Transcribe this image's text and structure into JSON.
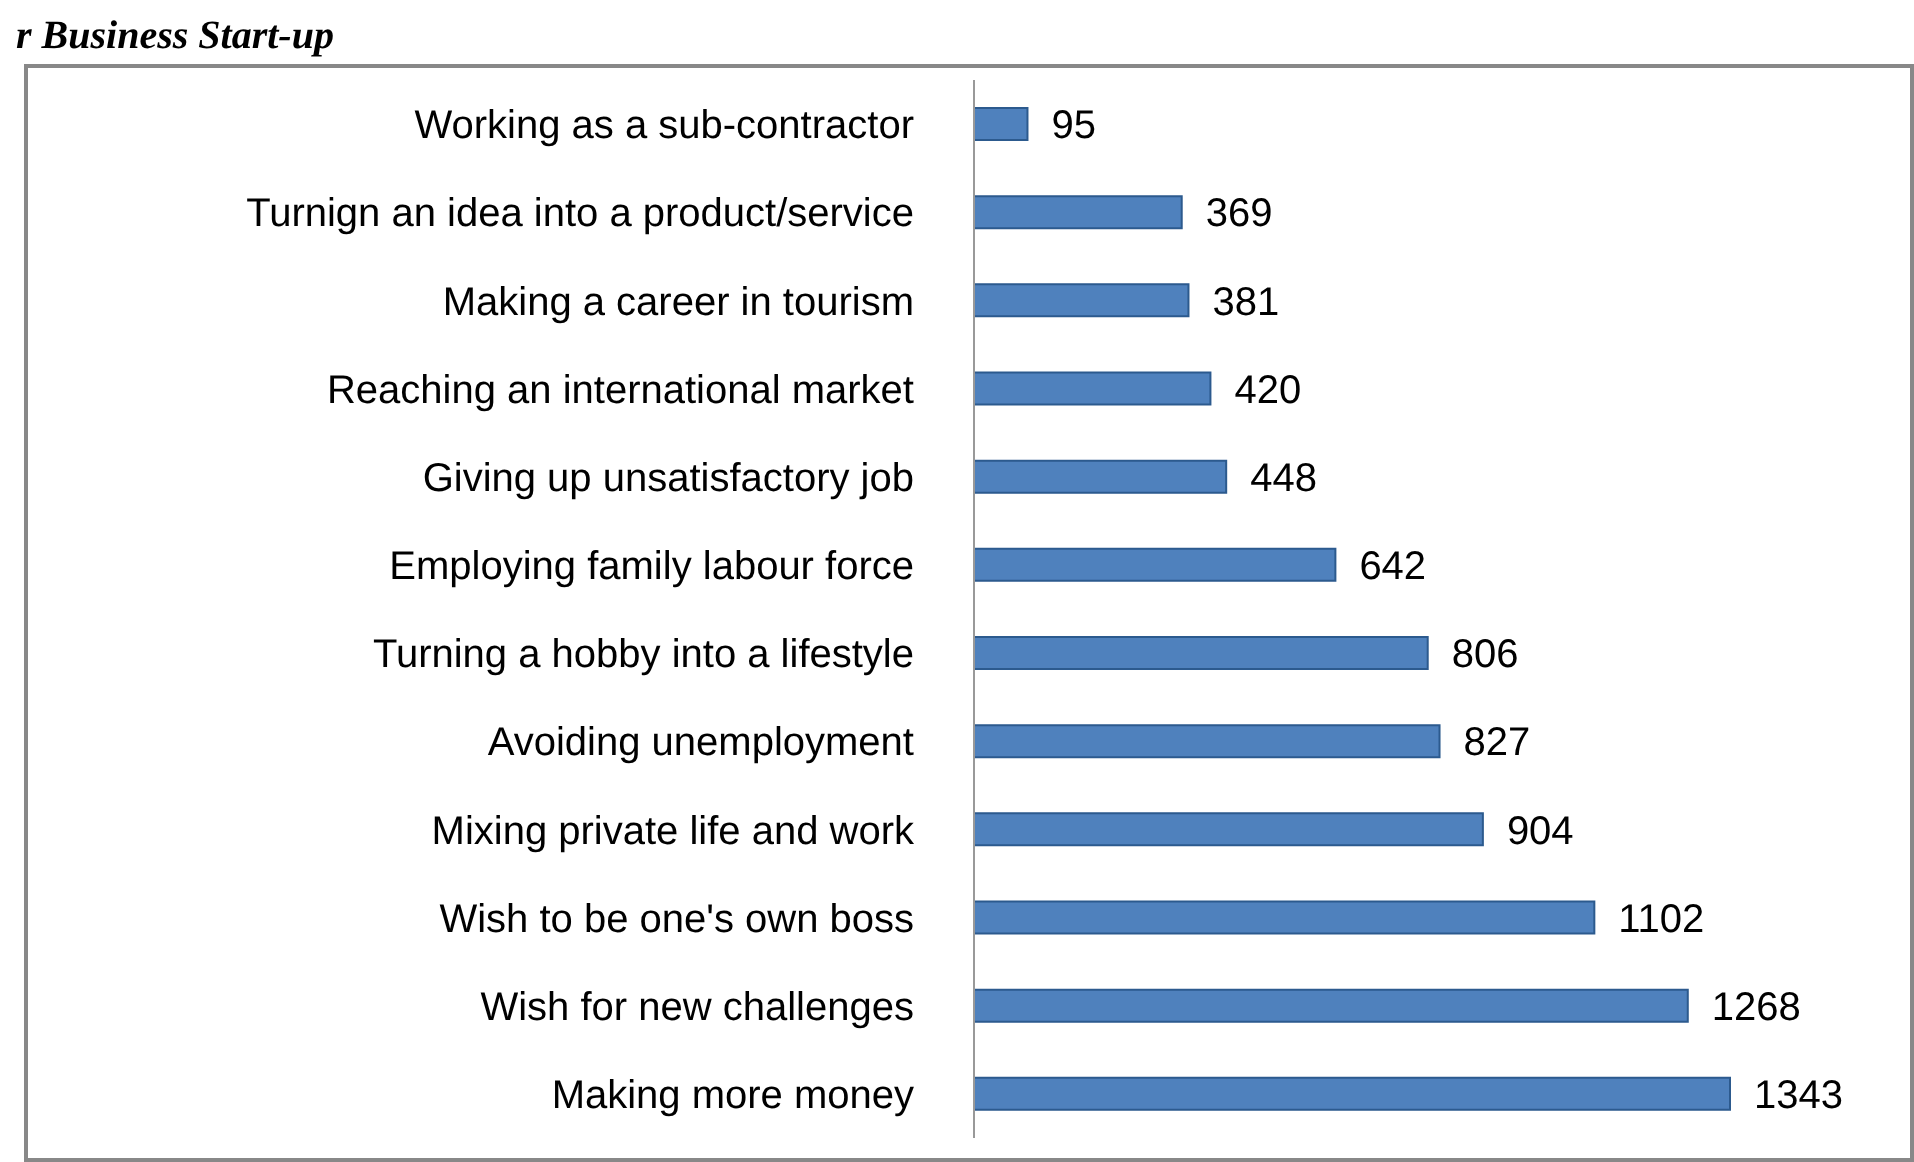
{
  "chart_data": {
    "type": "bar",
    "orientation": "horizontal",
    "title": "r Business Start-up",
    "data_labels": true,
    "grid": false,
    "legend": false,
    "categories": [
      "Working as a sub-contractor",
      "Turnign an idea into a product/service",
      "Making a career in tourism",
      "Reaching an international market",
      "Giving up unsatisfactory job",
      "Employing family labour force",
      "Turning a hobby into a lifestyle",
      "Avoiding unemployment",
      "Mixing private life and work",
      "Wish to be one's own boss",
      "Wish for new challenges",
      "Making more money"
    ],
    "values": [
      95,
      369,
      381,
      420,
      448,
      642,
      806,
      827,
      904,
      1102,
      1268,
      1343
    ],
    "color": "#4f81bd"
  }
}
